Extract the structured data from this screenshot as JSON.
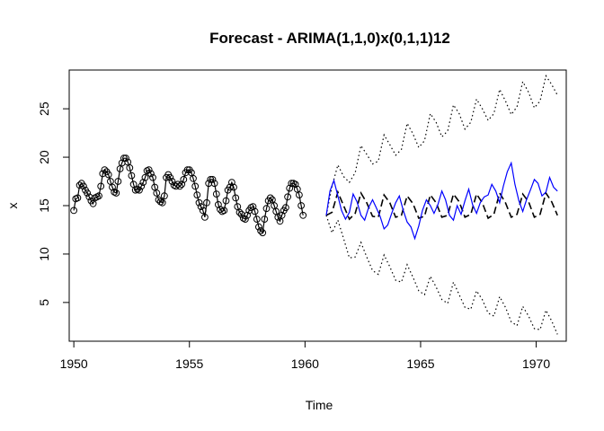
{
  "chart_data": {
    "type": "line",
    "title": "Forecast - ARIMA(1,1,0)x(0,1,1)12",
    "xlabel": "Time",
    "ylabel": "x",
    "xlim": [
      1949.8,
      1971.3
    ],
    "ylim": [
      1.0,
      29.0
    ],
    "x_ticks": [
      1950,
      1955,
      1960,
      1965,
      1970
    ],
    "y_ticks": [
      5,
      10,
      15,
      20,
      25
    ],
    "grid": false,
    "legend": "none",
    "colors": {
      "observed": "#000000",
      "forecast": "#000000",
      "bounds": "#000000",
      "actual": "#0000ff"
    },
    "series": [
      {
        "role": "observed",
        "style": "line-with-open-circles",
        "x_start": 1950.0,
        "x_step": 0.0833333,
        "values": [
          14.5,
          15.7,
          15.8,
          17.1,
          17.3,
          17.0,
          16.6,
          16.3,
          15.9,
          15.5,
          15.2,
          15.8,
          15.9,
          16.0,
          17.0,
          18.3,
          18.7,
          18.5,
          18.2,
          17.5,
          16.9,
          16.4,
          16.3,
          17.5,
          18.8,
          19.4,
          19.9,
          19.9,
          19.5,
          18.9,
          18.1,
          17.2,
          16.6,
          16.7,
          16.6,
          17.0,
          17.4,
          17.9,
          18.6,
          18.7,
          18.3,
          17.9,
          16.9,
          16.3,
          15.6,
          15.4,
          15.3,
          16.0,
          17.9,
          18.2,
          17.9,
          17.5,
          17.1,
          17.0,
          17.2,
          17.0,
          17.2,
          17.7,
          18.4,
          18.7,
          18.7,
          18.4,
          17.8,
          17.0,
          16.1,
          15.3,
          14.9,
          14.5,
          13.8,
          15.3,
          17.3,
          17.7,
          17.7,
          17.3,
          16.2,
          15.1,
          14.6,
          14.4,
          14.5,
          15.5,
          16.6,
          16.9,
          17.4,
          16.9,
          15.8,
          14.9,
          14.3,
          14.1,
          13.7,
          13.6,
          14.0,
          14.5,
          14.8,
          14.9,
          14.4,
          13.6,
          12.8,
          12.4,
          12.2,
          13.6,
          14.7,
          15.5,
          15.8,
          15.6,
          15.0,
          14.4,
          13.8,
          13.4,
          14.0,
          14.5,
          14.8,
          15.9,
          16.8,
          17.3,
          17.3,
          17.2,
          16.7,
          16.1,
          15.0,
          14.0
        ]
      },
      {
        "role": "forecast",
        "style": "dashed",
        "x": [
          1960.92,
          1961.17,
          1961.42,
          1961.67,
          1961.92,
          1962.17,
          1962.42,
          1962.67,
          1962.92,
          1963.17,
          1963.42,
          1963.67,
          1963.92,
          1964.17,
          1964.42,
          1964.67,
          1964.92,
          1965.17,
          1965.42,
          1965.67,
          1965.92,
          1966.17,
          1966.42,
          1966.67,
          1966.92,
          1967.17,
          1967.42,
          1967.67,
          1967.92,
          1968.17,
          1968.42,
          1968.67,
          1968.92,
          1969.17,
          1969.42,
          1969.67,
          1969.92,
          1970.17,
          1970.42,
          1970.67,
          1970.92
        ],
        "values": [
          14.0,
          14.3,
          16.4,
          15.0,
          13.6,
          14.2,
          16.3,
          15.3,
          13.9,
          13.8,
          16.1,
          15.3,
          13.8,
          14.0,
          16.0,
          15.2,
          13.7,
          13.9,
          16.1,
          15.3,
          13.8,
          14.0,
          16.2,
          15.4,
          13.8,
          14.1,
          16.2,
          15.3,
          13.7,
          14.1,
          16.3,
          15.3,
          13.8,
          14.1,
          16.2,
          15.4,
          13.8,
          14.1,
          16.3,
          15.4,
          14.0
        ]
      },
      {
        "role": "upper-bound",
        "style": "dotted",
        "x": [
          1960.92,
          1961.17,
          1961.42,
          1961.67,
          1961.92,
          1962.17,
          1962.42,
          1962.67,
          1962.92,
          1963.17,
          1963.42,
          1963.67,
          1963.92,
          1964.17,
          1964.42,
          1964.67,
          1964.92,
          1965.17,
          1965.42,
          1965.67,
          1965.92,
          1966.17,
          1966.42,
          1966.67,
          1966.92,
          1967.17,
          1967.42,
          1967.67,
          1967.92,
          1968.17,
          1968.42,
          1968.67,
          1968.92,
          1969.17,
          1969.42,
          1969.67,
          1969.92,
          1970.17,
          1970.42,
          1970.67,
          1970.92
        ],
        "values": [
          14.0,
          17.0,
          19.2,
          18.0,
          17.4,
          18.4,
          21.2,
          20.3,
          19.3,
          19.6,
          22.3,
          21.3,
          20.2,
          20.8,
          23.5,
          22.4,
          21.0,
          21.7,
          24.5,
          23.6,
          22.1,
          22.7,
          25.4,
          24.5,
          22.9,
          23.6,
          26.0,
          25.0,
          23.8,
          24.5,
          27.0,
          25.8,
          24.4,
          25.2,
          27.8,
          26.7,
          25.1,
          25.8,
          28.4,
          27.5,
          26.4
        ]
      },
      {
        "role": "lower-bound",
        "style": "dotted",
        "x": [
          1960.92,
          1961.17,
          1961.42,
          1961.67,
          1961.92,
          1962.17,
          1962.42,
          1962.67,
          1962.92,
          1963.17,
          1963.42,
          1963.67,
          1963.92,
          1964.17,
          1964.42,
          1964.67,
          1964.92,
          1965.17,
          1965.42,
          1965.67,
          1965.92,
          1966.17,
          1966.42,
          1966.67,
          1966.92,
          1967.17,
          1967.42,
          1967.67,
          1967.92,
          1968.17,
          1968.42,
          1968.67,
          1968.92,
          1969.17,
          1969.42,
          1969.67,
          1969.92,
          1970.17,
          1970.42,
          1970.67,
          1970.92
        ],
        "values": [
          14.0,
          12.2,
          13.5,
          11.6,
          9.6,
          9.7,
          11.2,
          9.7,
          8.3,
          7.9,
          9.9,
          8.7,
          7.3,
          7.1,
          8.9,
          7.6,
          6.2,
          5.8,
          7.7,
          6.6,
          5.3,
          4.9,
          7.1,
          5.8,
          4.5,
          4.3,
          6.2,
          5.3,
          3.9,
          3.6,
          5.6,
          4.5,
          3.0,
          2.6,
          4.6,
          3.6,
          2.3,
          2.2,
          4.2,
          3.1,
          1.7
        ]
      },
      {
        "role": "actual",
        "style": "solid",
        "x": [
          1960.92,
          1961.08,
          1961.25,
          1961.42,
          1961.58,
          1961.75,
          1961.92,
          1962.08,
          1962.25,
          1962.42,
          1962.58,
          1962.75,
          1962.92,
          1963.08,
          1963.25,
          1963.42,
          1963.58,
          1963.75,
          1963.92,
          1964.08,
          1964.25,
          1964.42,
          1964.58,
          1964.75,
          1964.92,
          1965.08,
          1965.25,
          1965.42,
          1965.58,
          1965.75,
          1965.92,
          1966.08,
          1966.25,
          1966.42,
          1966.58,
          1966.75,
          1966.92,
          1967.08,
          1967.25,
          1967.42,
          1967.58,
          1967.75,
          1967.92,
          1968.08,
          1968.25,
          1968.42,
          1968.58,
          1968.75,
          1968.92,
          1969.08,
          1969.25,
          1969.42,
          1969.58,
          1969.75,
          1969.92,
          1970.08,
          1970.25,
          1970.42,
          1970.58,
          1970.75,
          1970.92
        ],
        "values": [
          14.0,
          16.5,
          17.6,
          16.0,
          14.5,
          13.6,
          14.3,
          16.2,
          15.4,
          14.0,
          13.5,
          14.8,
          15.6,
          14.8,
          13.9,
          12.6,
          13.0,
          14.2,
          15.3,
          16.0,
          14.5,
          13.3,
          12.8,
          11.6,
          12.9,
          14.5,
          15.6,
          15.0,
          14.2,
          15.1,
          16.5,
          15.6,
          14.0,
          13.5,
          15.0,
          14.1,
          15.5,
          16.7,
          15.1,
          14.2,
          15.3,
          15.9,
          16.1,
          17.2,
          16.5,
          15.3,
          17.0,
          18.5,
          19.4,
          17.2,
          15.5,
          14.4,
          15.6,
          16.6,
          17.7,
          17.3,
          16.0,
          16.4,
          17.9,
          16.9,
          16.5
        ]
      }
    ]
  }
}
